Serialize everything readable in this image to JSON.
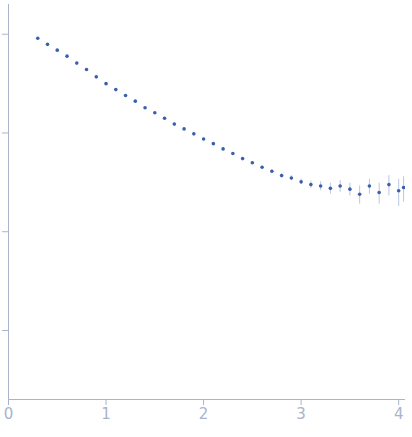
{
  "chart_data": {
    "type": "scatter",
    "color": "#3a5fad",
    "marker": "circle",
    "x": [
      0.3,
      0.4,
      0.5,
      0.6,
      0.7,
      0.8,
      0.9,
      1.0,
      1.1,
      1.2,
      1.3,
      1.4,
      1.5,
      1.6,
      1.7,
      1.8,
      1.9,
      2.0,
      2.1,
      2.2,
      2.3,
      2.4,
      2.5,
      2.6,
      2.7,
      2.8,
      2.9,
      3.0,
      3.1,
      3.2,
      3.3,
      3.4,
      3.5,
      3.6,
      3.7,
      3.8,
      3.9,
      4.0,
      4.05
    ],
    "values": [
      0.91,
      0.79,
      0.69,
      0.6,
      0.51,
      0.44,
      0.37,
      0.316,
      0.275,
      0.24,
      0.21,
      0.18,
      0.16,
      0.141,
      0.123,
      0.11,
      0.098,
      0.087,
      0.078,
      0.069,
      0.062,
      0.055,
      0.05,
      0.045,
      0.041,
      0.037,
      0.035,
      0.032,
      0.03,
      0.029,
      0.0275,
      0.029,
      0.027,
      0.024,
      0.029,
      0.025,
      0.03,
      0.026,
      0.028
    ],
    "errors": [
      0,
      0,
      0,
      0,
      0,
      0,
      0,
      0,
      0,
      0,
      0,
      0,
      0,
      0,
      0,
      0,
      0,
      0,
      0,
      0,
      0,
      0,
      0.001,
      0.001,
      0.0015,
      0.0015,
      0.002,
      0.002,
      0.0025,
      0.003,
      0.0035,
      0.004,
      0.004,
      0.005,
      0.005,
      0.006,
      0.007,
      0.008,
      0.008
    ],
    "xlim": [
      0,
      4.07
    ],
    "xticks": [
      0,
      1,
      2,
      3,
      4
    ],
    "ylim": [
      0.0002,
      2
    ],
    "yticks": [
      0.001,
      0.01,
      0.1,
      1
    ],
    "log": "y",
    "grid": false,
    "tick_labels": "x"
  }
}
